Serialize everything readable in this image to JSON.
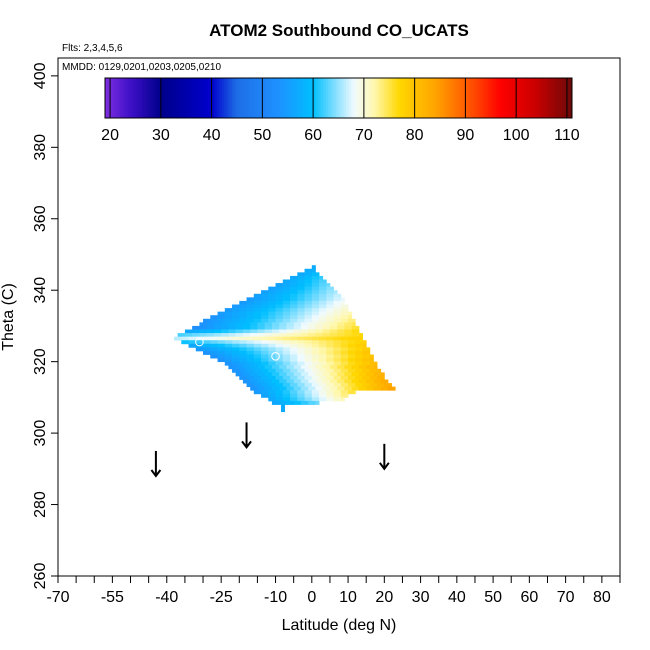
{
  "chart_data": {
    "type": "heatmap",
    "title": "ATOM2 Southbound CO_UCATS",
    "flights_note": "Flts: 2,3,4,5,6",
    "dates_note": "MMDD: 0129,0201,0203,0205,0210",
    "xlabel": "Latitude (deg N)",
    "ylabel": "Theta (C)",
    "xlim": [
      -70,
      85
    ],
    "ylim": [
      260,
      405
    ],
    "x_ticks": [
      -70,
      -55,
      -40,
      -25,
      -10,
      0,
      10,
      20,
      30,
      40,
      50,
      60,
      70,
      80
    ],
    "x_minor_ticks": [
      -65,
      -60,
      -50,
      -45,
      -35,
      -30,
      -20,
      -15,
      -5,
      5,
      15,
      25,
      35,
      45,
      55,
      65,
      75,
      85
    ],
    "y_ticks": [
      260,
      280,
      300,
      320,
      340,
      360,
      380,
      400
    ],
    "colorbar": {
      "ticks": [
        20,
        30,
        40,
        50,
        60,
        70,
        80,
        90,
        100,
        110
      ],
      "range": [
        19,
        111
      ],
      "stops": [
        {
          "v": 19,
          "color": "#7e2ee0"
        },
        {
          "v": 24,
          "color": "#3f10c8"
        },
        {
          "v": 30,
          "color": "#00008b"
        },
        {
          "v": 40,
          "color": "#0000cd"
        },
        {
          "v": 45,
          "color": "#1e6ee6"
        },
        {
          "v": 53,
          "color": "#1e90ff"
        },
        {
          "v": 60,
          "color": "#00bfff"
        },
        {
          "v": 68,
          "color": "#f0faff"
        },
        {
          "v": 72,
          "color": "#fff8b0"
        },
        {
          "v": 77,
          "color": "#ffd700"
        },
        {
          "v": 84,
          "color": "#ffa500"
        },
        {
          "v": 92,
          "color": "#ff4500"
        },
        {
          "v": 97,
          "color": "#ff0000"
        },
        {
          "v": 104,
          "color": "#c80000"
        },
        {
          "v": 111,
          "color": "#6b0a0a"
        }
      ]
    },
    "field_rows": [
      {
        "theta": 346.5,
        "x0": 0,
        "x1": 1,
        "value_left": 57,
        "value_right": 57
      },
      {
        "theta": 345.5,
        "x0": -2,
        "x1": 1,
        "value_left": 57,
        "value_right": 58
      },
      {
        "theta": 344.5,
        "x0": -4,
        "x1": 2,
        "value_left": 56,
        "value_right": 60
      },
      {
        "theta": 343.5,
        "x0": -6,
        "x1": 3,
        "value_left": 56,
        "value_right": 62
      },
      {
        "theta": 342.5,
        "x0": -8,
        "x1": 4,
        "value_left": 56,
        "value_right": 63
      },
      {
        "theta": 341.5,
        "x0": -10,
        "x1": 5,
        "value_left": 55,
        "value_right": 64
      },
      {
        "theta": 340.5,
        "x0": -12,
        "x1": 6,
        "value_left": 55,
        "value_right": 65
      },
      {
        "theta": 339.5,
        "x0": -14,
        "x1": 7,
        "value_left": 55,
        "value_right": 66
      },
      {
        "theta": 338.5,
        "x0": -16,
        "x1": 8,
        "value_left": 55,
        "value_right": 67
      },
      {
        "theta": 337.5,
        "x0": -18,
        "x1": 9,
        "value_left": 54,
        "value_right": 68
      },
      {
        "theta": 336.5,
        "x0": -20,
        "x1": 9,
        "value_left": 54,
        "value_right": 69
      },
      {
        "theta": 335.5,
        "x0": -22,
        "x1": 10,
        "value_left": 54,
        "value_right": 70
      },
      {
        "theta": 334.5,
        "x0": -24,
        "x1": 10,
        "value_left": 54,
        "value_right": 71
      },
      {
        "theta": 333.5,
        "x0": -26,
        "x1": 11,
        "value_left": 54,
        "value_right": 72
      },
      {
        "theta": 332.5,
        "x0": -28,
        "x1": 11,
        "value_left": 53,
        "value_right": 73
      },
      {
        "theta": 331.5,
        "x0": -30,
        "x1": 12,
        "value_left": 53,
        "value_right": 74
      },
      {
        "theta": 330.5,
        "x0": -31,
        "x1": 12,
        "value_left": 53,
        "value_right": 75
      },
      {
        "theta": 329.5,
        "x0": -33,
        "x1": 13,
        "value_left": 52,
        "value_right": 76
      },
      {
        "theta": 328.5,
        "x0": -35,
        "x1": 13,
        "value_left": 56,
        "value_right": 77
      },
      {
        "theta": 327.5,
        "x0": -37,
        "x1": 14,
        "value_left": 62,
        "value_right": 77
      },
      {
        "theta": 326.5,
        "x0": -38,
        "x1": 14,
        "value_left": 66,
        "value_right": 78
      },
      {
        "theta": 325.5,
        "x0": -36,
        "x1": 15,
        "value_left": 60,
        "value_right": 78
      },
      {
        "theta": 324.5,
        "x0": -34,
        "x1": 15,
        "value_left": 56,
        "value_right": 79
      },
      {
        "theta": 323.5,
        "x0": -32,
        "x1": 16,
        "value_left": 54,
        "value_right": 79
      },
      {
        "theta": 322.5,
        "x0": -30,
        "x1": 16,
        "value_left": 53,
        "value_right": 80
      },
      {
        "theta": 321.5,
        "x0": -28,
        "x1": 17,
        "value_left": 53,
        "value_right": 80
      },
      {
        "theta": 320.5,
        "x0": -26,
        "x1": 17,
        "value_left": 53,
        "value_right": 81
      },
      {
        "theta": 319.5,
        "x0": -24,
        "x1": 18,
        "value_left": 53,
        "value_right": 81
      },
      {
        "theta": 318.5,
        "x0": -23,
        "x1": 18,
        "value_left": 53,
        "value_right": 82
      },
      {
        "theta": 317.5,
        "x0": -22,
        "x1": 19,
        "value_left": 53,
        "value_right": 82
      },
      {
        "theta": 316.5,
        "x0": -21,
        "x1": 20,
        "value_left": 53,
        "value_right": 83
      },
      {
        "theta": 315.5,
        "x0": -20,
        "x1": 20,
        "value_left": 53,
        "value_right": 83
      },
      {
        "theta": 314.5,
        "x0": -19,
        "x1": 21,
        "value_left": 53,
        "value_right": 84
      },
      {
        "theta": 313.5,
        "x0": -18,
        "x1": 22,
        "value_left": 53,
        "value_right": 84
      },
      {
        "theta": 312.5,
        "x0": -17,
        "x1": 23,
        "value_left": 53,
        "value_right": 85
      },
      {
        "theta": 311.5,
        "x0": -16,
        "x1": 12,
        "value_left": 54,
        "value_right": 76
      },
      {
        "theta": 310.5,
        "x0": -14,
        "x1": 10,
        "value_left": 55,
        "value_right": 74
      },
      {
        "theta": 309.5,
        "x0": -12,
        "x1": 9,
        "value_left": 56,
        "value_right": 72
      },
      {
        "theta": 308.5,
        "x0": -11,
        "x1": 2,
        "value_left": 56,
        "value_right": 64
      },
      {
        "theta": 307.5,
        "x0": -8.5,
        "x1": -7.5,
        "value_left": 57,
        "value_right": 57
      },
      {
        "theta": 306.5,
        "x0": -8.5,
        "x1": -7.5,
        "value_left": 57,
        "value_right": 57
      }
    ],
    "markers": [
      {
        "x": -31,
        "theta": 325.5
      },
      {
        "x": -10,
        "theta": 321.5
      }
    ],
    "arrows": [
      {
        "x": -43,
        "theta_top": 295,
        "theta_bottom": 288
      },
      {
        "x": -18,
        "theta_top": 303,
        "theta_bottom": 296
      },
      {
        "x": 20,
        "theta_top": 297,
        "theta_bottom": 290
      }
    ]
  }
}
